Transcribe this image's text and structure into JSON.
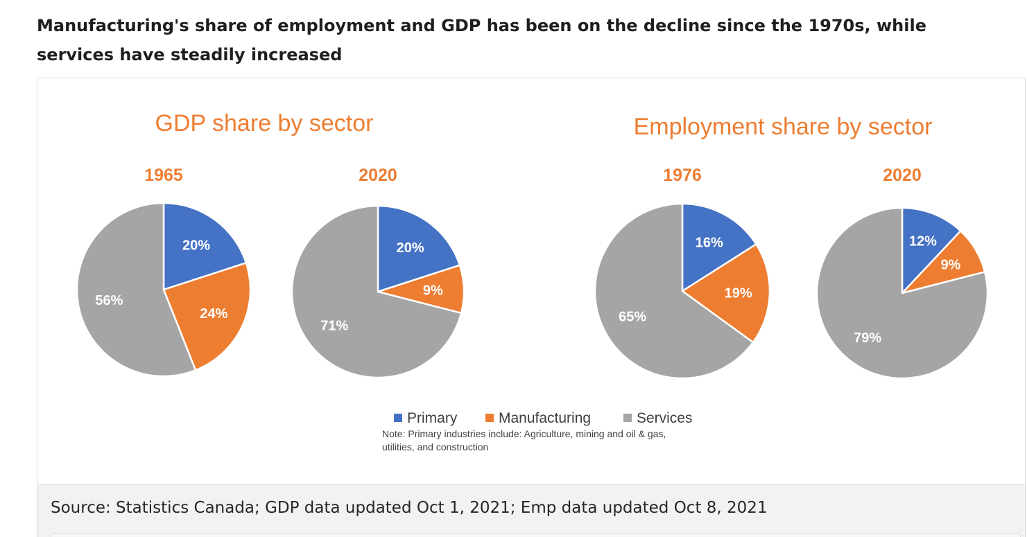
{
  "headline": "Manufacturing's share of employment and GDP has been on the decline since the 1970s, while services have steadily increased",
  "source": "Source: Statistics Canada; GDP data updated Oct 1, 2021; Emp data updated Oct 8, 2021",
  "colors": {
    "Primary": "#4472c4",
    "Manufacturing": "#ed7d31",
    "Services": "#a5a5a5",
    "title": "#ed7d31"
  },
  "legend": [
    "Primary",
    "Manufacturing",
    "Services"
  ],
  "note_lines": [
    "Note: Primary industries include: Agriculture, mining and oil & gas,",
    "utilities, and construction"
  ],
  "chart_data": [
    {
      "type": "pie",
      "title": "GDP share by sector",
      "subtitle": "1965",
      "categories": [
        "Primary",
        "Manufacturing",
        "Services"
      ],
      "values": [
        20,
        24,
        56
      ],
      "labels": [
        "20%",
        "24%",
        "56%"
      ]
    },
    {
      "type": "pie",
      "title": "",
      "subtitle": "2020",
      "categories": [
        "Primary",
        "Manufacturing",
        "Services"
      ],
      "values": [
        20,
        9,
        71
      ],
      "labels": [
        "20%",
        "9%",
        "71%"
      ]
    },
    {
      "type": "pie",
      "title": "Employment share by sector",
      "subtitle": "1976",
      "categories": [
        "Primary",
        "Manufacturing",
        "Services"
      ],
      "values": [
        16,
        19,
        65
      ],
      "labels": [
        "16%",
        "19%",
        "65%"
      ]
    },
    {
      "type": "pie",
      "title": "",
      "subtitle": "2020",
      "categories": [
        "Primary",
        "Manufacturing",
        "Services"
      ],
      "values": [
        12,
        9,
        79
      ],
      "labels": [
        "12%",
        "9%",
        "79%"
      ]
    }
  ]
}
